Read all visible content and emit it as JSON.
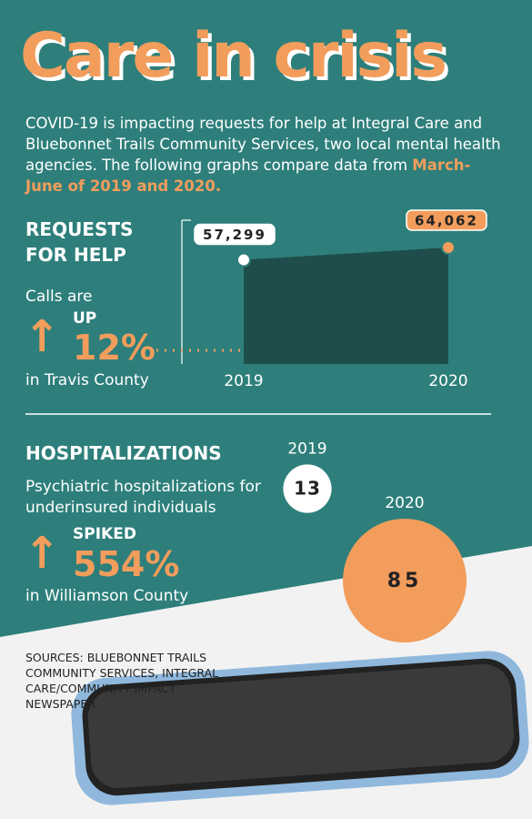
{
  "title": "Care in crisis",
  "intro": {
    "text": "COVID-19 is impacting requests for help at Integral Care and Bluebonnet Trails Community Services, two local mental health agencies. The following graphs compare data from ",
    "highlight": "March-June of 2019 and 2020."
  },
  "requests": {
    "heading": "REQUESTS FOR HELP",
    "lead": "Calls are",
    "direction": "UP",
    "change": "12%",
    "place": "in Travis County"
  },
  "hospitalizations": {
    "heading": "HOSPITALIZATIONS",
    "lead": "Psychiatric hospitalizations for underinsured individuals",
    "direction": "SPIKED",
    "change": "554%",
    "place": "in Williamson County"
  },
  "sources": "SOURCES: BLUEBONNET TRAILS COMMUNITY SERVICES, INTEGRAL CARE/COMMUNITY IMPACT NEWSPAPER",
  "chart_data": [
    {
      "type": "area",
      "categories": [
        "2019",
        "2020"
      ],
      "values": [
        57299,
        64062
      ],
      "value_labels": [
        "57,299",
        "64,062"
      ],
      "color": "#1f4d4b",
      "point_colors": [
        "#ffffff",
        "#f29d5c"
      ]
    },
    {
      "type": "bubble",
      "categories": [
        "2019",
        "2020"
      ],
      "values": [
        13,
        85
      ],
      "colors": [
        "#ffffff",
        "#f29d5c"
      ]
    }
  ]
}
